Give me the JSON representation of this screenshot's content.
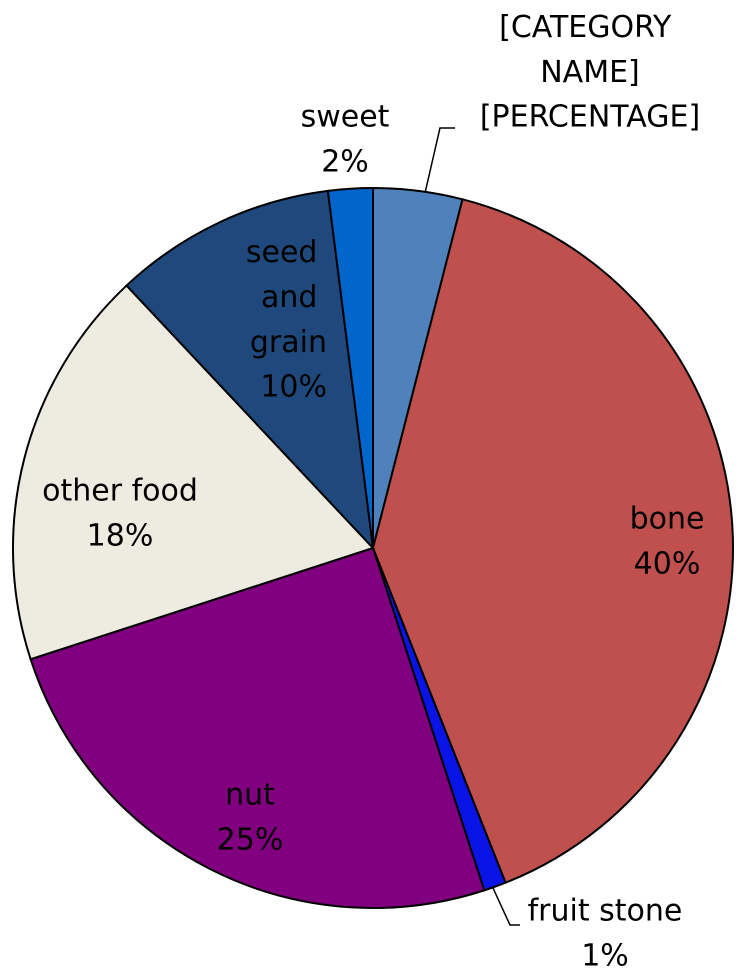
{
  "chart_data": {
    "type": "pie",
    "categories": [
      "[CATEGORY NAME]",
      "bone",
      "fruit stone",
      "nut",
      "other food",
      "seed and grain",
      "sweet"
    ],
    "values": [
      4,
      40,
      1,
      25,
      18,
      10,
      2
    ],
    "value_labels": [
      "[PERCENTAGE]",
      "40%",
      "1%",
      "25%",
      "18%",
      "10%",
      "2%"
    ],
    "colors": [
      "#4f81bd",
      "#c0504d",
      "#0a14e6",
      "#800080",
      "#eeece1",
      "#1f497d",
      "#0066cc"
    ]
  }
}
